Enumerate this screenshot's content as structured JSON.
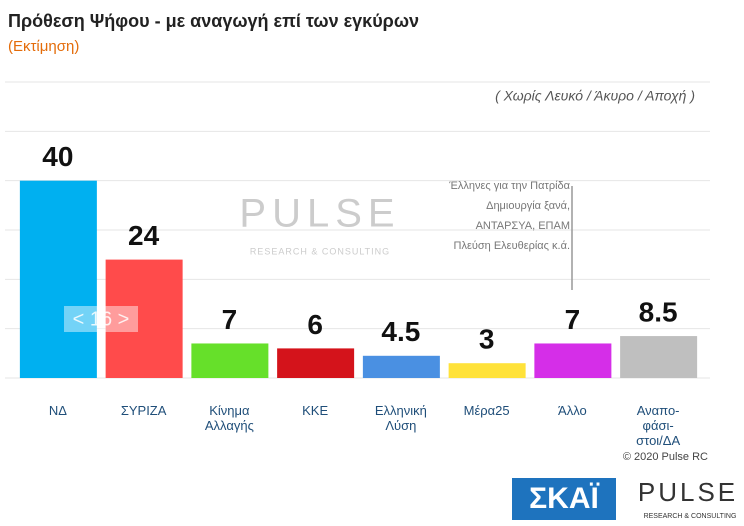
{
  "chart_data": {
    "type": "bar",
    "title": "Πρόθεση Ψήφου - με αναγωγή επί των εγκύρων",
    "subtitle": "(Εκτίμηση)",
    "note": "( Χωρίς Λευκό / Άκυρο / Αποχή )",
    "annotation_lines": [
      "Έλληνες για την Πατρίδα",
      "Δημιουργία ξανά,",
      "ΑΝΤΑΡΣΥΑ, ΕΠΑΜ",
      "Πλεύση Ελευθερίας κ.ά."
    ],
    "gap_label": "< 16 >",
    "categories": [
      "ΝΔ",
      "ΣΥΡΙΖΑ",
      "Κίνημα\nΑλλαγής",
      "ΚΚΕ",
      "Ελληνική\nΛύση",
      "Μέρα25",
      "Άλλο",
      "Αναπο-\nφάσι-\nστοι/ΔΑ"
    ],
    "values": [
      40,
      24,
      7,
      6,
      4.5,
      3,
      7,
      8.5
    ],
    "colors": [
      "#00b0f0",
      "#ff4b4b",
      "#66e02a",
      "#d4131b",
      "#4a90e2",
      "#ffe23a",
      "#d52ee8",
      "#bfbfbf"
    ],
    "ylim": [
      0,
      60
    ],
    "yticks": [
      0,
      10,
      20,
      30,
      40,
      50,
      60
    ],
    "grid": true,
    "watermark": {
      "name": "PULSE",
      "sub": "RESEARCH & CONSULTING"
    },
    "source": "© 2020 Pulse RC"
  },
  "logos": {
    "skai": "ΣΚΑΪ",
    "pulse": "PULSE",
    "pulse_sub": "RESEARCH & CONSULTING"
  }
}
